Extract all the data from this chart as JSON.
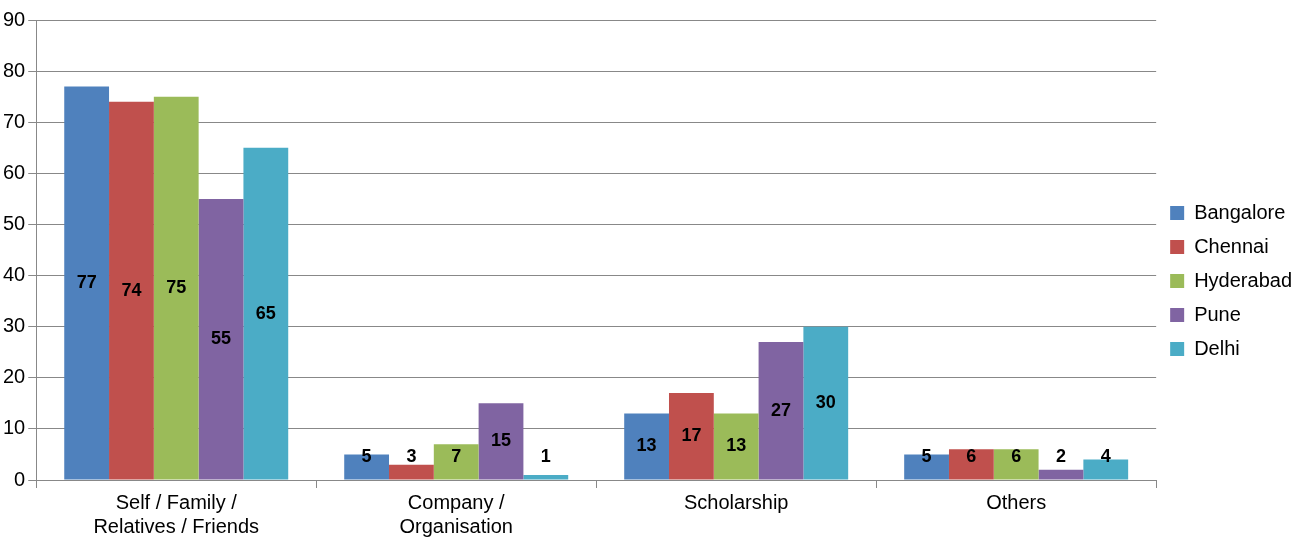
{
  "chart_data": {
    "type": "bar",
    "categories": [
      "Self / Family / Relatives / Friends",
      "Company / Organisation",
      "Scholarship",
      "Others"
    ],
    "series": [
      {
        "name": "Bangalore",
        "color": "#4f81bd",
        "values": [
          77,
          5,
          13,
          5
        ]
      },
      {
        "name": "Chennai",
        "color": "#c0504d",
        "values": [
          74,
          3,
          17,
          6
        ]
      },
      {
        "name": "Hyderabad",
        "color": "#9bbb59",
        "values": [
          75,
          7,
          13,
          6
        ]
      },
      {
        "name": "Pune",
        "color": "#8064a2",
        "values": [
          55,
          15,
          27,
          2
        ]
      },
      {
        "name": "Delhi",
        "color": "#4bacc6",
        "values": [
          65,
          1,
          30,
          4
        ]
      }
    ],
    "ylim": [
      0,
      90
    ],
    "yticks": [
      0,
      10,
      20,
      30,
      40,
      50,
      60,
      70,
      80,
      90
    ],
    "grid": "y",
    "legend": "right",
    "data_labels": true
  }
}
